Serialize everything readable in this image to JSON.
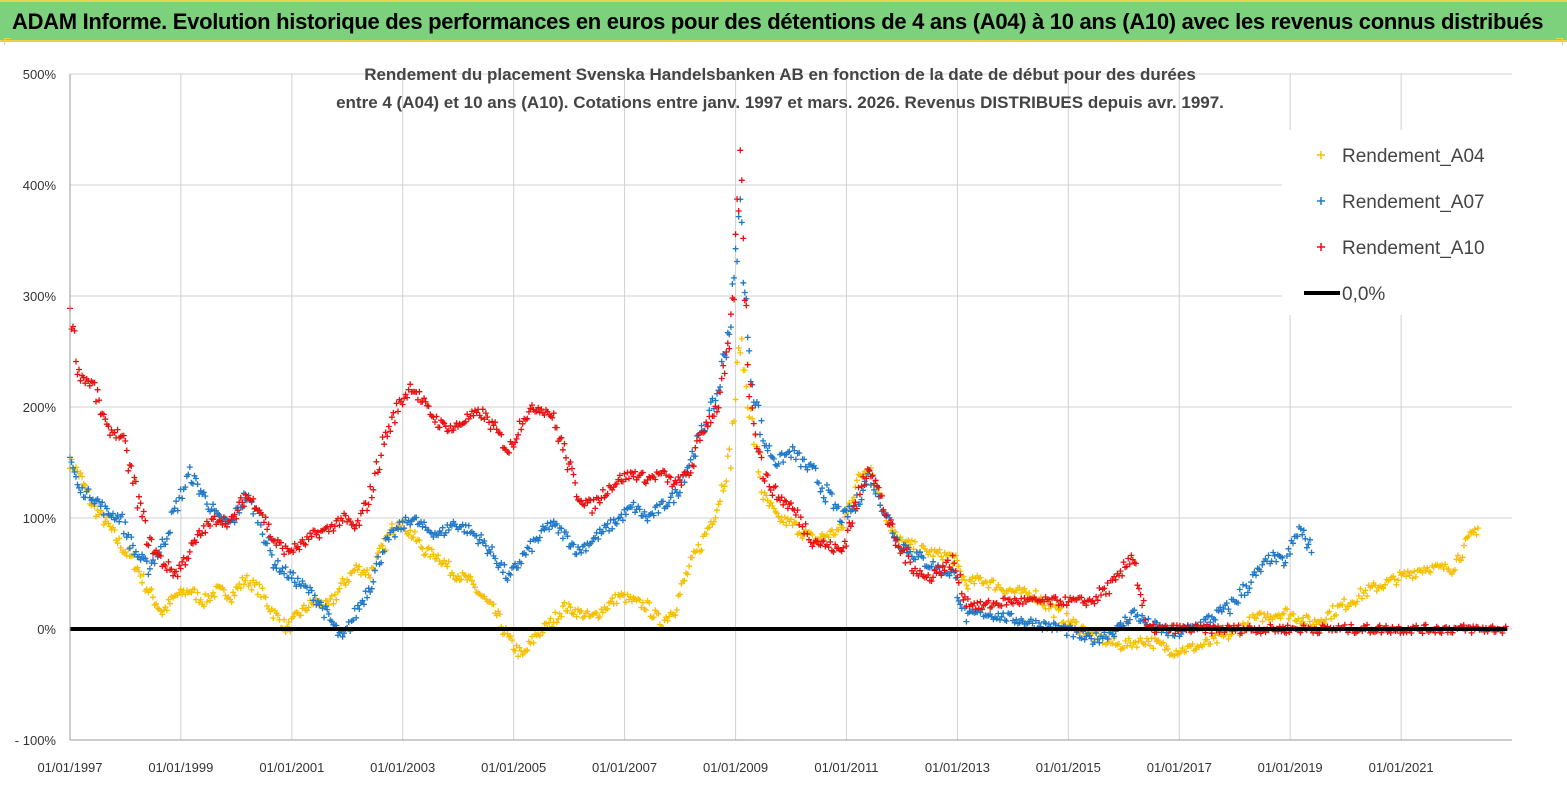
{
  "banner": {
    "title": "ADAM Informe. Evolution historique des performances en euros pour des détentions de 4 ans (A04) à 10 ans (A10) avec les revenus connus distribués"
  },
  "chart_data": {
    "type": "scatter",
    "title_lines": [
      "Rendement du placement Svenska Handelsbanken AB en fonction de la date de début pour des durées",
      "entre 4 (A04) et 10 ans (A10).  Cotations entre janv. 1997 et mars. 2026. Revenus DISTRIBUES depuis avr. 1997."
    ],
    "xlabel": "",
    "ylabel": "",
    "x_range": [
      "1997-01-01",
      "2023-01-01"
    ],
    "x_ticks": [
      "01/01/1997",
      "01/01/1999",
      "01/01/2001",
      "01/01/2003",
      "01/01/2005",
      "01/01/2007",
      "01/01/2009",
      "01/01/2011",
      "01/01/2013",
      "01/01/2015",
      "01/01/2017",
      "01/01/2019",
      "01/01/2021"
    ],
    "ylim": [
      -100,
      500
    ],
    "y_ticks": [
      {
        "value": 500,
        "label": "500%"
      },
      {
        "value": 400,
        "label": "400%"
      },
      {
        "value": 300,
        "label": "300%"
      },
      {
        "value": 200,
        "label": "200%"
      },
      {
        "value": 100,
        "label": "100%"
      },
      {
        "value": 0,
        "label": "0%"
      },
      {
        "value": -100,
        "label": "- 100%"
      }
    ],
    "grid": "horizontal",
    "legend_position": "top-right",
    "series": [
      {
        "name": "Rendement_A04",
        "color": "#f5c000",
        "marker": "+",
        "points": [
          [
            "1997-01-01",
            150
          ],
          [
            "1997-03-01",
            140
          ],
          [
            "1997-06-01",
            110
          ],
          [
            "1997-09-01",
            95
          ],
          [
            "1997-12-01",
            75
          ],
          [
            "1998-03-01",
            60
          ],
          [
            "1998-06-01",
            35
          ],
          [
            "1998-09-01",
            15
          ],
          [
            "1998-12-01",
            30
          ],
          [
            "1999-03-01",
            35
          ],
          [
            "1999-06-01",
            25
          ],
          [
            "1999-09-01",
            35
          ],
          [
            "1999-12-01",
            30
          ],
          [
            "2000-03-01",
            45
          ],
          [
            "2000-06-01",
            35
          ],
          [
            "2000-09-01",
            15
          ],
          [
            "2000-12-01",
            0
          ],
          [
            "2001-03-01",
            15
          ],
          [
            "2001-06-01",
            25
          ],
          [
            "2001-09-01",
            20
          ],
          [
            "2001-12-01",
            40
          ],
          [
            "2002-03-01",
            55
          ],
          [
            "2002-06-01",
            50
          ],
          [
            "2002-09-01",
            75
          ],
          [
            "2002-12-01",
            100
          ],
          [
            "2003-03-01",
            85
          ],
          [
            "2003-06-01",
            70
          ],
          [
            "2003-09-01",
            65
          ],
          [
            "2003-12-01",
            50
          ],
          [
            "2004-03-01",
            45
          ],
          [
            "2004-06-01",
            30
          ],
          [
            "2004-09-01",
            15
          ],
          [
            "2004-12-01",
            -10
          ],
          [
            "2005-03-01",
            -25
          ],
          [
            "2005-06-01",
            -5
          ],
          [
            "2005-09-01",
            5
          ],
          [
            "2005-12-01",
            20
          ],
          [
            "2006-03-01",
            15
          ],
          [
            "2006-06-01",
            10
          ],
          [
            "2006-09-01",
            20
          ],
          [
            "2006-12-01",
            30
          ],
          [
            "2007-03-01",
            25
          ],
          [
            "2007-06-01",
            20
          ],
          [
            "2007-09-01",
            5
          ],
          [
            "2007-12-01",
            20
          ],
          [
            "2008-03-01",
            55
          ],
          [
            "2008-06-01",
            80
          ],
          [
            "2008-09-01",
            110
          ],
          [
            "2008-12-01",
            160
          ],
          [
            "2009-02-01",
            260
          ],
          [
            "2009-04-01",
            200
          ],
          [
            "2009-07-01",
            120
          ],
          [
            "2009-10-01",
            100
          ],
          [
            "2010-01-01",
            95
          ],
          [
            "2010-06-01",
            80
          ],
          [
            "2010-12-01",
            90
          ],
          [
            "2011-03-01",
            130
          ],
          [
            "2011-06-01",
            150
          ],
          [
            "2011-09-01",
            110
          ],
          [
            "2011-12-01",
            80
          ],
          [
            "2012-06-01",
            70
          ],
          [
            "2012-12-01",
            65
          ],
          [
            "2013-03-01",
            40
          ],
          [
            "2013-06-01",
            45
          ],
          [
            "2013-12-01",
            35
          ],
          [
            "2014-06-01",
            30
          ],
          [
            "2014-12-01",
            10
          ],
          [
            "2015-06-01",
            -5
          ],
          [
            "2015-12-01",
            -15
          ],
          [
            "2016-06-01",
            -10
          ],
          [
            "2016-12-01",
            -20
          ],
          [
            "2017-06-01",
            -15
          ],
          [
            "2017-12-01",
            -5
          ],
          [
            "2018-06-01",
            10
          ],
          [
            "2018-12-01",
            15
          ],
          [
            "2019-06-01",
            5
          ],
          [
            "2019-12-01",
            20
          ],
          [
            "2020-06-01",
            35
          ],
          [
            "2020-12-01",
            45
          ],
          [
            "2021-06-01",
            55
          ],
          [
            "2021-12-01",
            55
          ],
          [
            "2022-03-01",
            75
          ],
          [
            "2022-06-01",
            95
          ]
        ]
      },
      {
        "name": "Rendement_A07",
        "color": "#1f78c8",
        "marker": "+",
        "points": [
          [
            "1997-01-01",
            155
          ],
          [
            "1997-03-01",
            125
          ],
          [
            "1997-06-01",
            120
          ],
          [
            "1997-09-01",
            105
          ],
          [
            "1997-12-01",
            100
          ],
          [
            "1998-03-01",
            70
          ],
          [
            "1998-06-01",
            55
          ],
          [
            "1998-09-01",
            75
          ],
          [
            "1998-12-01",
            110
          ],
          [
            "1999-03-01",
            140
          ],
          [
            "1999-06-01",
            120
          ],
          [
            "1999-09-01",
            100
          ],
          [
            "1999-12-01",
            95
          ],
          [
            "2000-03-01",
            120
          ],
          [
            "2000-06-01",
            100
          ],
          [
            "2000-09-01",
            60
          ],
          [
            "2000-12-01",
            50
          ],
          [
            "2001-03-01",
            40
          ],
          [
            "2001-06-01",
            30
          ],
          [
            "2001-09-01",
            10
          ],
          [
            "2001-12-01",
            -10
          ],
          [
            "2002-03-01",
            15
          ],
          [
            "2002-06-01",
            40
          ],
          [
            "2002-09-01",
            75
          ],
          [
            "2002-12-01",
            90
          ],
          [
            "2003-03-01",
            100
          ],
          [
            "2003-06-01",
            90
          ],
          [
            "2003-09-01",
            85
          ],
          [
            "2003-12-01",
            95
          ],
          [
            "2004-03-01",
            90
          ],
          [
            "2004-06-01",
            80
          ],
          [
            "2004-09-01",
            65
          ],
          [
            "2004-12-01",
            45
          ],
          [
            "2005-03-01",
            65
          ],
          [
            "2005-06-01",
            80
          ],
          [
            "2005-09-01",
            95
          ],
          [
            "2005-12-01",
            85
          ],
          [
            "2006-03-01",
            70
          ],
          [
            "2006-06-01",
            80
          ],
          [
            "2006-09-01",
            90
          ],
          [
            "2006-12-01",
            100
          ],
          [
            "2007-03-01",
            110
          ],
          [
            "2007-06-01",
            100
          ],
          [
            "2007-09-01",
            110
          ],
          [
            "2007-12-01",
            120
          ],
          [
            "2008-03-01",
            150
          ],
          [
            "2008-06-01",
            180
          ],
          [
            "2008-09-01",
            210
          ],
          [
            "2008-12-01",
            280
          ],
          [
            "2009-02-01",
            380
          ],
          [
            "2009-04-01",
            240
          ],
          [
            "2009-07-01",
            170
          ],
          [
            "2009-10-01",
            150
          ],
          [
            "2010-01-01",
            160
          ],
          [
            "2010-06-01",
            140
          ],
          [
            "2010-12-01",
            100
          ],
          [
            "2011-03-01",
            110
          ],
          [
            "2011-06-01",
            140
          ],
          [
            "2011-09-01",
            110
          ],
          [
            "2011-12-01",
            80
          ],
          [
            "2012-06-01",
            60
          ],
          [
            "2012-12-01",
            50
          ],
          [
            "2013-03-01",
            10
          ],
          [
            "2013-06-01",
            15
          ],
          [
            "2013-12-01",
            10
          ],
          [
            "2014-06-01",
            5
          ],
          [
            "2014-12-01",
            0
          ],
          [
            "2015-06-01",
            -10
          ],
          [
            "2015-12-01",
            0
          ],
          [
            "2016-03-01",
            15
          ],
          [
            "2016-06-01",
            5
          ],
          [
            "2016-12-01",
            -5
          ],
          [
            "2017-06-01",
            5
          ],
          [
            "2017-12-01",
            20
          ],
          [
            "2018-06-01",
            50
          ],
          [
            "2018-09-01",
            65
          ],
          [
            "2018-12-01",
            60
          ],
          [
            "2019-03-01",
            90
          ],
          [
            "2019-06-01",
            70
          ]
        ]
      },
      {
        "name": "Rendement_A10",
        "color": "#e81010",
        "marker": "+",
        "points": [
          [
            "1997-01-01",
            290
          ],
          [
            "1997-03-01",
            230
          ],
          [
            "1997-06-01",
            220
          ],
          [
            "1997-09-01",
            180
          ],
          [
            "1997-12-01",
            175
          ],
          [
            "1998-03-01",
            130
          ],
          [
            "1998-06-01",
            80
          ],
          [
            "1998-09-01",
            60
          ],
          [
            "1998-12-01",
            50
          ],
          [
            "1999-03-01",
            70
          ],
          [
            "1999-06-01",
            90
          ],
          [
            "1999-09-01",
            100
          ],
          [
            "1999-12-01",
            95
          ],
          [
            "2000-03-01",
            120
          ],
          [
            "2000-06-01",
            110
          ],
          [
            "2000-09-01",
            80
          ],
          [
            "2000-12-01",
            70
          ],
          [
            "2001-03-01",
            75
          ],
          [
            "2001-06-01",
            85
          ],
          [
            "2001-09-01",
            90
          ],
          [
            "2001-12-01",
            100
          ],
          [
            "2002-03-01",
            90
          ],
          [
            "2002-06-01",
            120
          ],
          [
            "2002-09-01",
            170
          ],
          [
            "2002-12-01",
            200
          ],
          [
            "2003-03-01",
            220
          ],
          [
            "2003-06-01",
            200
          ],
          [
            "2003-09-01",
            185
          ],
          [
            "2003-12-01",
            180
          ],
          [
            "2004-03-01",
            190
          ],
          [
            "2004-06-01",
            195
          ],
          [
            "2004-09-01",
            180
          ],
          [
            "2004-12-01",
            160
          ],
          [
            "2005-03-01",
            190
          ],
          [
            "2005-06-01",
            200
          ],
          [
            "2005-09-01",
            195
          ],
          [
            "2005-12-01",
            160
          ],
          [
            "2006-03-01",
            120
          ],
          [
            "2006-06-01",
            110
          ],
          [
            "2006-09-01",
            125
          ],
          [
            "2006-12-01",
            135
          ],
          [
            "2007-03-01",
            140
          ],
          [
            "2007-06-01",
            135
          ],
          [
            "2007-09-01",
            140
          ],
          [
            "2007-12-01",
            130
          ],
          [
            "2008-03-01",
            140
          ],
          [
            "2008-06-01",
            180
          ],
          [
            "2008-09-01",
            200
          ],
          [
            "2008-12-01",
            260
          ],
          [
            "2009-02-01",
            420
          ],
          [
            "2009-04-01",
            220
          ],
          [
            "2009-07-01",
            140
          ],
          [
            "2009-10-01",
            120
          ],
          [
            "2010-01-01",
            110
          ],
          [
            "2010-06-01",
            80
          ],
          [
            "2010-12-01",
            70
          ],
          [
            "2011-03-01",
            110
          ],
          [
            "2011-06-01",
            150
          ],
          [
            "2011-09-01",
            110
          ],
          [
            "2011-12-01",
            75
          ],
          [
            "2012-06-01",
            45
          ],
          [
            "2012-12-01",
            60
          ],
          [
            "2013-03-01",
            25
          ],
          [
            "2013-06-01",
            20
          ],
          [
            "2013-12-01",
            25
          ],
          [
            "2014-06-01",
            25
          ],
          [
            "2014-12-01",
            25
          ],
          [
            "2015-06-01",
            25
          ],
          [
            "2015-12-01",
            45
          ],
          [
            "2016-03-01",
            70
          ],
          [
            "2016-06-01",
            0
          ],
          [
            "2017-06-01",
            0
          ],
          [
            "2018-06-01",
            0
          ],
          [
            "2019-06-01",
            0
          ],
          [
            "2020-06-01",
            0
          ],
          [
            "2021-06-01",
            0
          ],
          [
            "2022-06-01",
            0
          ],
          [
            "2022-12-01",
            0
          ]
        ]
      },
      {
        "name": "0,0%",
        "color": "#000000",
        "marker": "line",
        "points": [
          [
            "1997-01-01",
            0
          ],
          [
            "2022-12-01",
            0
          ]
        ]
      }
    ]
  }
}
